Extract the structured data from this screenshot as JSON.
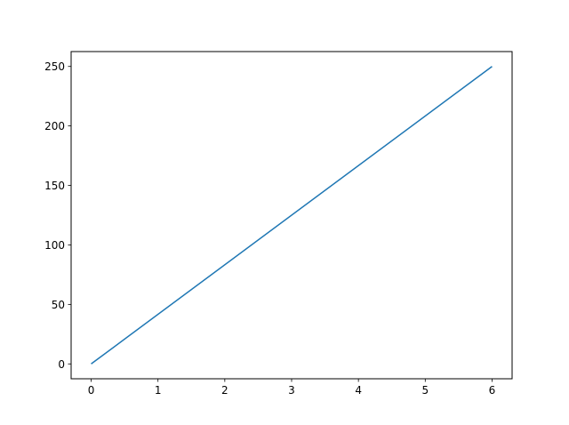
{
  "chart_data": {
    "type": "line",
    "title": "",
    "xlabel": "",
    "ylabel": "",
    "xlim": [
      -0.3,
      6.3
    ],
    "ylim": [
      -12.5,
      262.5
    ],
    "grid": false,
    "xticks": [
      0,
      1,
      2,
      3,
      4,
      5,
      6
    ],
    "yticks": [
      0,
      50,
      100,
      150,
      200,
      250
    ],
    "xtick_labels": [
      "0",
      "1",
      "2",
      "3",
      "4",
      "5",
      "6"
    ],
    "ytick_labels": [
      "0",
      "50",
      "100",
      "150",
      "200",
      "250"
    ],
    "series": [
      {
        "x": [
          0,
          6
        ],
        "y": [
          0,
          250
        ],
        "color": "#1f77b4"
      }
    ]
  }
}
